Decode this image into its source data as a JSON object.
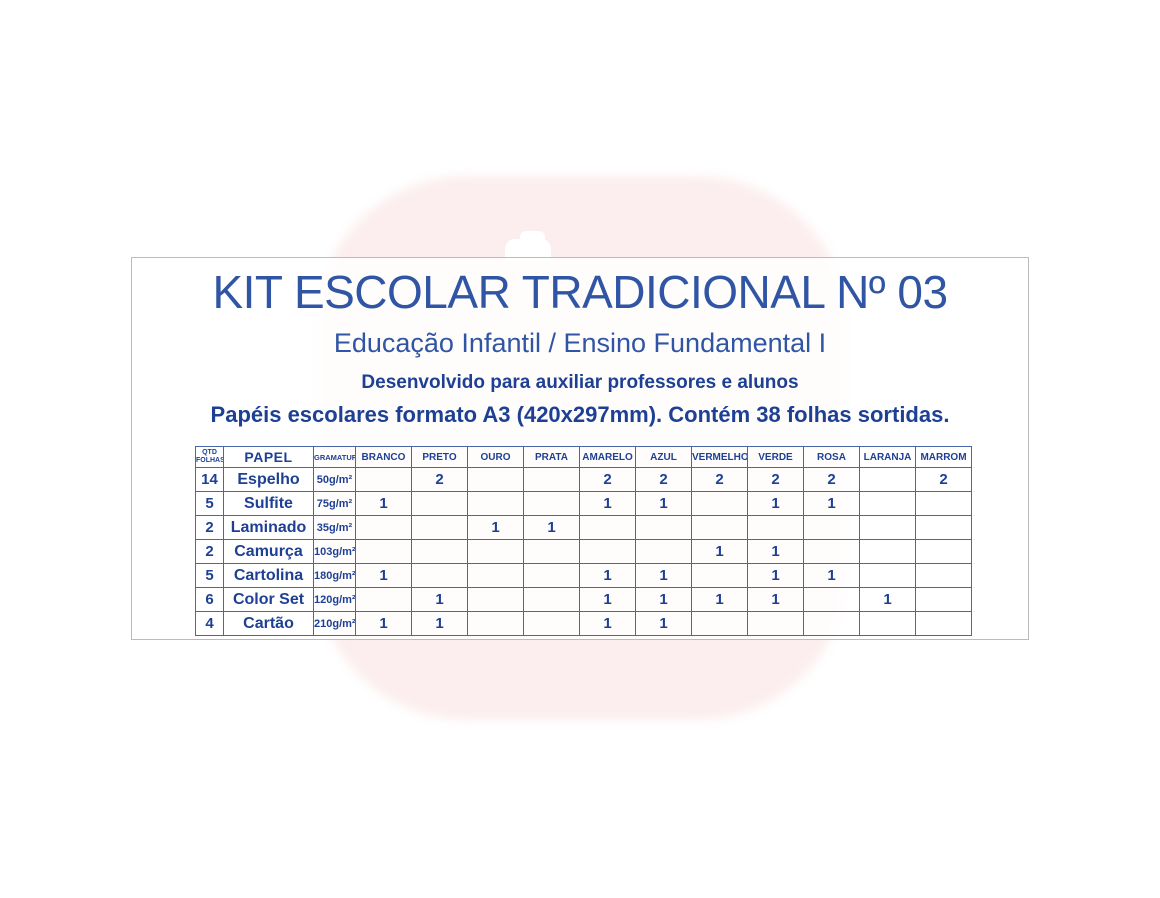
{
  "card": {
    "title": "KIT ESCOLAR TRADICIONAL Nº 03",
    "subtitle": "Educação Infantil / Ensino Fundamental I",
    "tagline": "Desenvolvido para auxiliar professores e alunos",
    "description": "Papéis escolares formato A3 (420x297mm). Contém 38 folhas sortidas."
  },
  "table": {
    "headers": {
      "qty_line1": "QTD",
      "qty_line2": "FOLHAS",
      "paper": "PAPEL",
      "weight": "GRAMATURA",
      "colors": [
        "BRANCO",
        "PRETO",
        "OURO",
        "PRATA",
        "AMARELO",
        "AZUL",
        "VERMELHO",
        "VERDE",
        "ROSA",
        "LARANJA",
        "MARROM"
      ]
    },
    "rows": [
      {
        "qty": "14",
        "paper": "Espelho",
        "weight": "50g/m²",
        "counts": [
          "",
          "2",
          "",
          "",
          "2",
          "2",
          "2",
          "2",
          "2",
          "",
          "2"
        ]
      },
      {
        "qty": "5",
        "paper": "Sulfite",
        "weight": "75g/m²",
        "counts": [
          "1",
          "",
          "",
          "",
          "1",
          "1",
          "",
          "1",
          "1",
          "",
          ""
        ]
      },
      {
        "qty": "2",
        "paper": "Laminado",
        "weight": "35g/m²",
        "counts": [
          "",
          "",
          "1",
          "1",
          "",
          "",
          "",
          "",
          "",
          "",
          ""
        ]
      },
      {
        "qty": "2",
        "paper": "Camurça",
        "weight": "103g/m²",
        "counts": [
          "",
          "",
          "",
          "",
          "",
          "",
          "1",
          "1",
          "",
          "",
          ""
        ]
      },
      {
        "qty": "5",
        "paper": "Cartolina",
        "weight": "180g/m²",
        "counts": [
          "1",
          "",
          "",
          "",
          "1",
          "1",
          "",
          "1",
          "1",
          "",
          ""
        ]
      },
      {
        "qty": "6",
        "paper": "Color Set",
        "weight": "120g/m²",
        "counts": [
          "",
          "1",
          "",
          "",
          "1",
          "1",
          "1",
          "1",
          "",
          "1",
          ""
        ]
      },
      {
        "qty": "4",
        "paper": "Cartão",
        "weight": "210g/m²",
        "counts": [
          "1",
          "1",
          "",
          "",
          "1",
          "1",
          "",
          "",
          "",
          "",
          ""
        ]
      }
    ],
    "total_sheets": "38"
  },
  "colors": {
    "title_blue": "#2f55a4",
    "text_navy": "#1e4094",
    "table_border": "#4866aa",
    "card_border": "#bdbaba",
    "watermark_pink": "#fceeee",
    "page_background": "#ffffff"
  }
}
